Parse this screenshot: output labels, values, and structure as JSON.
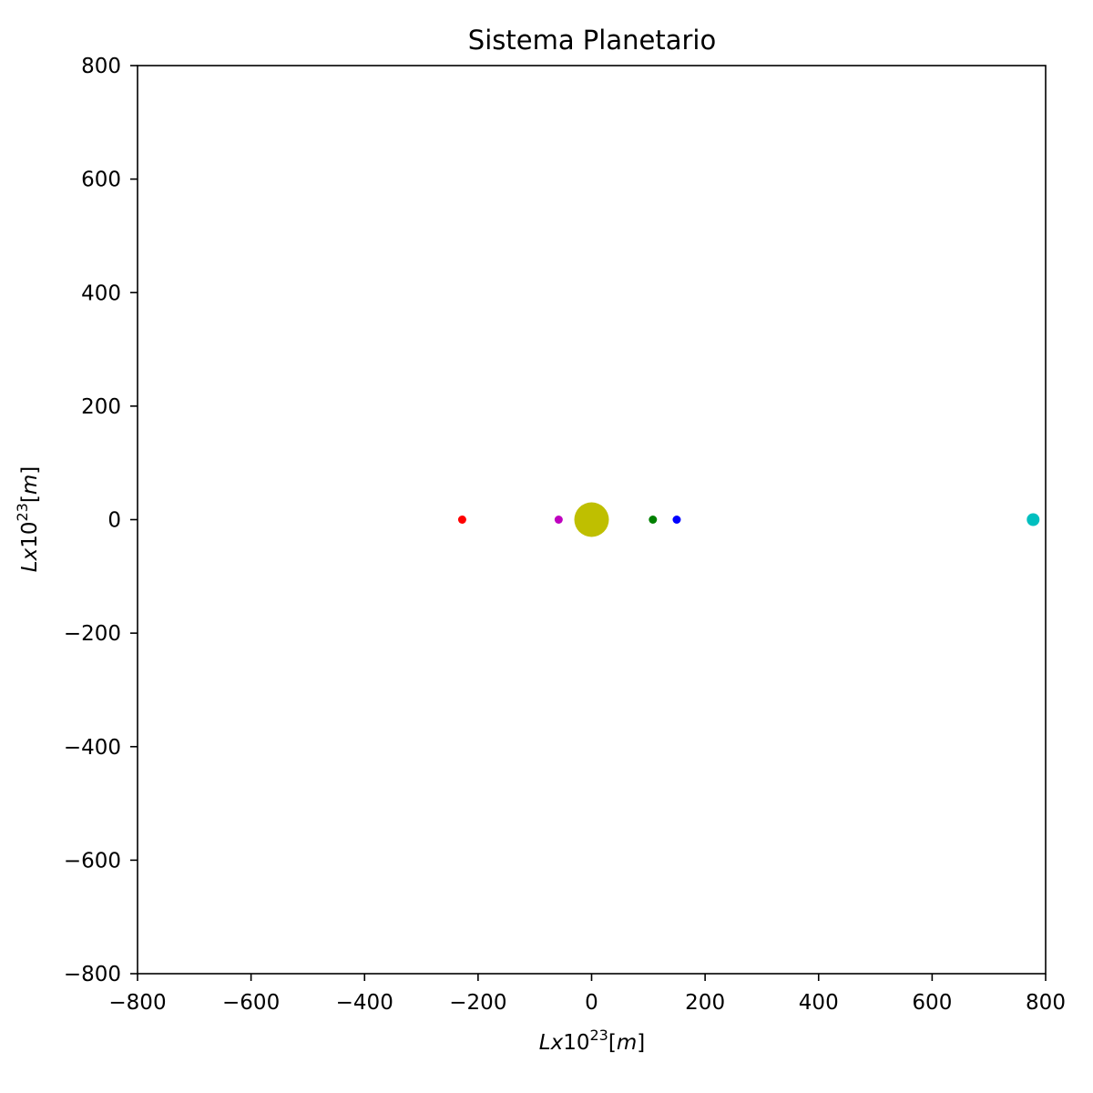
{
  "chart_data": {
    "type": "scatter",
    "title": "Sistema Planetario",
    "xlabel": {
      "var": "Lx",
      "base": "10",
      "exp": "23",
      "unit_open": "[",
      "unit": "m",
      "unit_close": "]"
    },
    "ylabel": {
      "var": "Lx",
      "base": "10",
      "exp": "23",
      "unit_open": "[",
      "unit": "m",
      "unit_close": "]"
    },
    "xlim": [
      -800,
      800
    ],
    "ylim": [
      -800,
      800
    ],
    "xticks": [
      -800,
      -600,
      -400,
      -200,
      0,
      200,
      400,
      600,
      800
    ],
    "yticks": [
      -800,
      -600,
      -400,
      -200,
      0,
      200,
      400,
      600,
      800
    ],
    "grid": false,
    "points": [
      {
        "x": 0,
        "y": 0,
        "color": "#bfbf00",
        "size": "large"
      },
      {
        "x": -58,
        "y": 0,
        "color": "#bf00bf",
        "size": "small"
      },
      {
        "x": 108,
        "y": 0,
        "color": "#008000",
        "size": "small"
      },
      {
        "x": 150,
        "y": 0,
        "color": "#0000ff",
        "size": "small"
      },
      {
        "x": -228,
        "y": 0,
        "color": "#ff0000",
        "size": "small"
      },
      {
        "x": 778,
        "y": 0,
        "color": "#00bfbf",
        "size": "medium"
      }
    ]
  }
}
